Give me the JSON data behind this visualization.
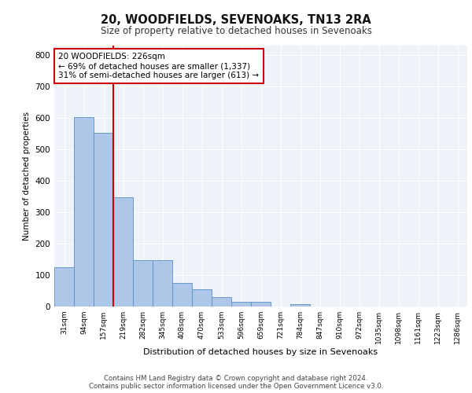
{
  "title": "20, WOODFIELDS, SEVENOAKS, TN13 2RA",
  "subtitle": "Size of property relative to detached houses in Sevenoaks",
  "xlabel": "Distribution of detached houses by size in Sevenoaks",
  "ylabel": "Number of detached properties",
  "categories": [
    "31sqm",
    "94sqm",
    "157sqm",
    "219sqm",
    "282sqm",
    "345sqm",
    "408sqm",
    "470sqm",
    "533sqm",
    "596sqm",
    "659sqm",
    "721sqm",
    "784sqm",
    "847sqm",
    "910sqm",
    "972sqm",
    "1035sqm",
    "1098sqm",
    "1161sqm",
    "1223sqm",
    "1286sqm"
  ],
  "values": [
    125,
    602,
    551,
    348,
    148,
    148,
    75,
    55,
    30,
    15,
    15,
    0,
    8,
    0,
    0,
    0,
    0,
    0,
    0,
    0,
    0
  ],
  "bar_color": "#aec6e8",
  "bar_edge_color": "#5a8fc2",
  "property_line_color": "#cc0000",
  "annotation_text": "20 WOODFIELDS: 226sqm\n← 69% of detached houses are smaller (1,337)\n31% of semi-detached houses are larger (613) →",
  "annotation_box_color": "#ffffff",
  "annotation_box_edge_color": "#cc0000",
  "footer_line1": "Contains HM Land Registry data © Crown copyright and database right 2024.",
  "footer_line2": "Contains public sector information licensed under the Open Government Licence v3.0.",
  "ylim": [
    0,
    830
  ],
  "yticks": [
    0,
    100,
    200,
    300,
    400,
    500,
    600,
    700,
    800
  ],
  "background_color": "#eef2f9",
  "fig_background_color": "#ffffff",
  "grid_color": "#ffffff",
  "property_line_xindex": 2.5
}
